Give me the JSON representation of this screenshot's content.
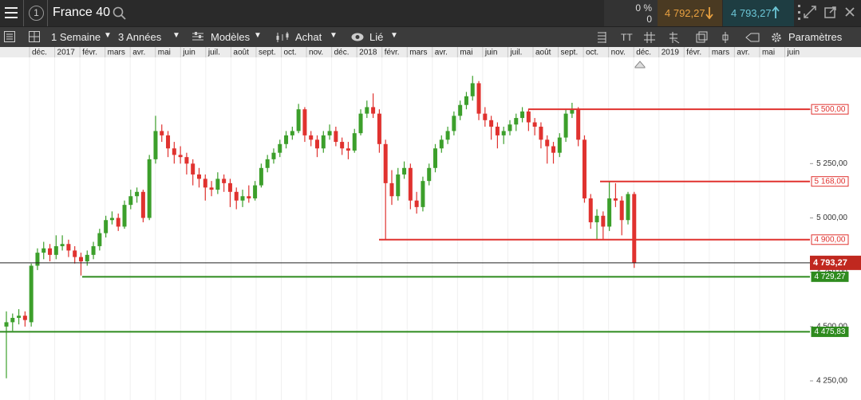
{
  "header": {
    "instrument": "France 40",
    "badge": "1",
    "change_pct": "0 %",
    "change": "0",
    "sell": "4 792,27",
    "buy": "4 793,27"
  },
  "toolbar": {
    "interval": "1 Semaine",
    "range": "3 Années",
    "templates": "Modèles",
    "order": "Achat",
    "link": "Lié",
    "settings": "Paramètres"
  },
  "chart_data": {
    "type": "candlestick",
    "up_color": "#3c9f2b",
    "down_color": "#e0322f",
    "time_labels": [
      "déc.",
      "2017",
      "févr.",
      "mars",
      "avr.",
      "mai",
      "juin",
      "juil.",
      "août",
      "sept.",
      "oct.",
      "nov.",
      "déc.",
      "2018",
      "févr.",
      "mars",
      "avr.",
      "mai",
      "juin",
      "juil.",
      "août",
      "sept.",
      "oct.",
      "nov.",
      "déc.",
      "2019",
      "févr.",
      "mars",
      "avr.",
      "mai",
      "juin"
    ],
    "ylim": [
      4162,
      5739
    ],
    "yticks": [
      {
        "value": 5500,
        "label": "5 500,00"
      },
      {
        "value": 5250,
        "label": "5 250,00"
      },
      {
        "value": 5000,
        "label": "5 000,00"
      },
      {
        "value": 4750,
        "label": "4 750,00"
      },
      {
        "value": 4500,
        "label": "4 500,00"
      },
      {
        "value": 4250,
        "label": "4 250,00"
      }
    ],
    "levels": [
      {
        "value": 5500,
        "label": "5 500,00",
        "color": "#e0322f"
      },
      {
        "value": 5168,
        "label": "5 168,00",
        "color": "#e0322f"
      },
      {
        "value": 4900,
        "label": "4 900,00",
        "color": "#e0322f"
      },
      {
        "value": 4729.27,
        "label": "4 729,27",
        "color": "#2e8b1e"
      },
      {
        "value": 4475.83,
        "label": "4 475,83",
        "color": "#2e8b1e"
      }
    ],
    "last_price": {
      "value": 4793.27,
      "label": "4 793,27",
      "color": "#c0281f"
    },
    "ohlc": [
      [
        4500,
        4570,
        4262,
        4520
      ],
      [
        4520,
        4560,
        4480,
        4540
      ],
      [
        4540,
        4580,
        4510,
        4550
      ],
      [
        4550,
        4570,
        4500,
        4530
      ],
      [
        4520,
        4790,
        4500,
        4780
      ],
      [
        4780,
        4860,
        4760,
        4840
      ],
      [
        4840,
        4890,
        4810,
        4860
      ],
      [
        4860,
        4880,
        4800,
        4830
      ],
      [
        4830,
        4920,
        4810,
        4870
      ],
      [
        4870,
        4920,
        4850,
        4880
      ],
      [
        4880,
        4900,
        4820,
        4850
      ],
      [
        4850,
        4870,
        4790,
        4820
      ],
      [
        4820,
        4840,
        4735,
        4800
      ],
      [
        4800,
        4850,
        4780,
        4830
      ],
      [
        4830,
        4890,
        4810,
        4870
      ],
      [
        4870,
        4950,
        4850,
        4930
      ],
      [
        4930,
        5010,
        4910,
        4990
      ],
      [
        4990,
        5030,
        4970,
        5000
      ],
      [
        5000,
        5020,
        4940,
        4960
      ],
      [
        4960,
        5080,
        4950,
        5060
      ],
      [
        5060,
        5130,
        5040,
        5100
      ],
      [
        5100,
        5140,
        5070,
        5120
      ],
      [
        5120,
        5130,
        4980,
        5000
      ],
      [
        5000,
        5290,
        4990,
        5270
      ],
      [
        5270,
        5470,
        5250,
        5400
      ],
      [
        5400,
        5430,
        5350,
        5380
      ],
      [
        5380,
        5400,
        5280,
        5320
      ],
      [
        5320,
        5350,
        5250,
        5290
      ],
      [
        5290,
        5330,
        5250,
        5280
      ],
      [
        5280,
        5300,
        5200,
        5250
      ],
      [
        5250,
        5270,
        5150,
        5200
      ],
      [
        5200,
        5230,
        5140,
        5180
      ],
      [
        5180,
        5200,
        5080,
        5140
      ],
      [
        5140,
        5170,
        5100,
        5130
      ],
      [
        5130,
        5210,
        5110,
        5180
      ],
      [
        5180,
        5200,
        5120,
        5160
      ],
      [
        5160,
        5180,
        5050,
        5120
      ],
      [
        5120,
        5140,
        5040,
        5080
      ],
      [
        5080,
        5130,
        5050,
        5100
      ],
      [
        5100,
        5150,
        5070,
        5090
      ],
      [
        5090,
        5170,
        5080,
        5150
      ],
      [
        5150,
        5250,
        5140,
        5230
      ],
      [
        5230,
        5290,
        5210,
        5270
      ],
      [
        5270,
        5320,
        5250,
        5300
      ],
      [
        5300,
        5360,
        5280,
        5340
      ],
      [
        5340,
        5400,
        5320,
        5380
      ],
      [
        5380,
        5420,
        5360,
        5400
      ],
      [
        5400,
        5525,
        5390,
        5500
      ],
      [
        5500,
        5510,
        5350,
        5380
      ],
      [
        5380,
        5400,
        5330,
        5360
      ],
      [
        5360,
        5380,
        5280,
        5320
      ],
      [
        5320,
        5400,
        5300,
        5380
      ],
      [
        5380,
        5430,
        5360,
        5400
      ],
      [
        5400,
        5420,
        5330,
        5350
      ],
      [
        5350,
        5370,
        5290,
        5320
      ],
      [
        5320,
        5350,
        5270,
        5310
      ],
      [
        5310,
        5410,
        5300,
        5390
      ],
      [
        5390,
        5500,
        5380,
        5480
      ],
      [
        5480,
        5540,
        5460,
        5510
      ],
      [
        5510,
        5573,
        5460,
        5480
      ],
      [
        5480,
        5500,
        5300,
        5340
      ],
      [
        5340,
        5360,
        4900,
        5160
      ],
      [
        5160,
        5220,
        5060,
        5100
      ],
      [
        5100,
        5230,
        5080,
        5200
      ],
      [
        5200,
        5260,
        5180,
        5230
      ],
      [
        5230,
        5250,
        5040,
        5080
      ],
      [
        5080,
        5120,
        5020,
        5050
      ],
      [
        5050,
        5190,
        5030,
        5170
      ],
      [
        5170,
        5250,
        5150,
        5230
      ],
      [
        5230,
        5340,
        5210,
        5320
      ],
      [
        5320,
        5380,
        5300,
        5360
      ],
      [
        5360,
        5420,
        5340,
        5400
      ],
      [
        5400,
        5490,
        5380,
        5470
      ],
      [
        5470,
        5540,
        5450,
        5520
      ],
      [
        5520,
        5580,
        5500,
        5560
      ],
      [
        5560,
        5654,
        5540,
        5620
      ],
      [
        5620,
        5630,
        5450,
        5480
      ],
      [
        5480,
        5510,
        5420,
        5450
      ],
      [
        5450,
        5470,
        5360,
        5420
      ],
      [
        5420,
        5440,
        5320,
        5380
      ],
      [
        5380,
        5420,
        5340,
        5400
      ],
      [
        5400,
        5450,
        5380,
        5430
      ],
      [
        5430,
        5480,
        5400,
        5460
      ],
      [
        5460,
        5510,
        5440,
        5490
      ],
      [
        5490,
        5500,
        5400,
        5440
      ],
      [
        5440,
        5460,
        5380,
        5420
      ],
      [
        5420,
        5440,
        5320,
        5360
      ],
      [
        5360,
        5380,
        5250,
        5330
      ],
      [
        5330,
        5350,
        5250,
        5300
      ],
      [
        5300,
        5390,
        5280,
        5370
      ],
      [
        5370,
        5500,
        5350,
        5480
      ],
      [
        5480,
        5530,
        5460,
        5500
      ],
      [
        5500,
        5510,
        5330,
        5360
      ],
      [
        5360,
        5380,
        5070,
        5090
      ],
      [
        5090,
        5110,
        4950,
        4980
      ],
      [
        4980,
        5040,
        4900,
        5010
      ],
      [
        5010,
        5030,
        4900,
        4960
      ],
      [
        4960,
        5170,
        4940,
        5090
      ],
      [
        5090,
        5160,
        5050,
        5080
      ],
      [
        5080,
        5100,
        4920,
        4990
      ],
      [
        4990,
        5120,
        4970,
        5110
      ],
      [
        5110,
        5120,
        4770,
        4793.27
      ]
    ]
  }
}
